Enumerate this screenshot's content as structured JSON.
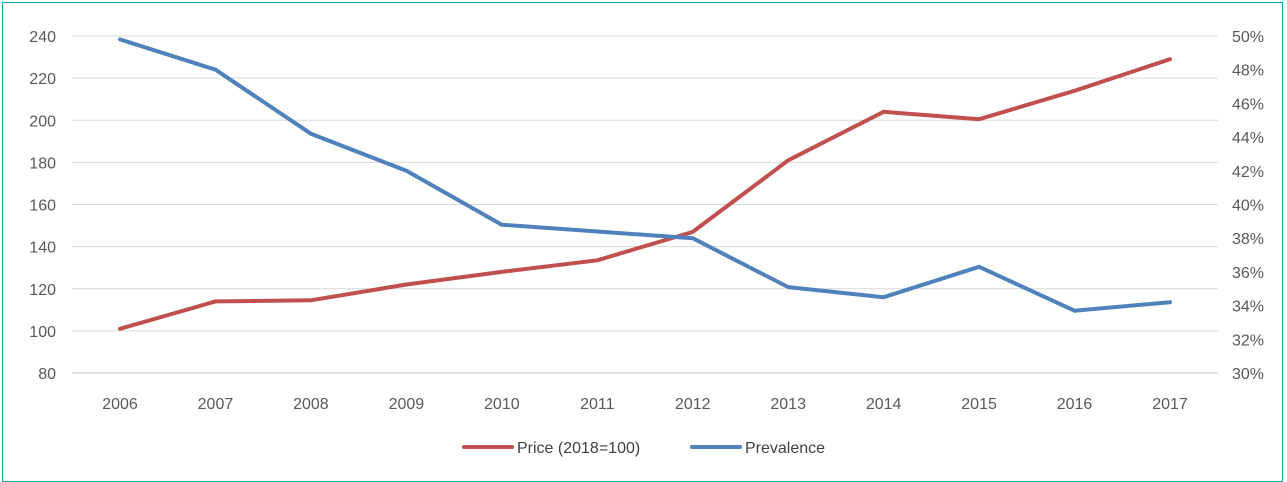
{
  "chart_data": {
    "type": "line",
    "title": "",
    "x": [
      "2006",
      "2007",
      "2008",
      "2009",
      "2010",
      "2011",
      "2012",
      "2013",
      "2014",
      "2015",
      "2016",
      "2017"
    ],
    "y_left": {
      "min": 80,
      "max": 240,
      "step": 20,
      "tick_labels": [
        "80",
        "100",
        "120",
        "140",
        "160",
        "180",
        "200",
        "220",
        "240"
      ]
    },
    "y_right": {
      "min": 30,
      "max": 50,
      "step": 2,
      "unit": "%",
      "tick_labels": [
        "30%",
        "32%",
        "34%",
        "36%",
        "38%",
        "40%",
        "42%",
        "44%",
        "46%",
        "48%",
        "50%"
      ]
    },
    "grid": true,
    "legend_position": "bottom",
    "series": [
      {
        "name": "Price (2018=100)",
        "axis": "left",
        "color": "#c0504d",
        "values": [
          101,
          114,
          114.5,
          122,
          128,
          133.5,
          147,
          181,
          204,
          200.5,
          214,
          229
        ]
      },
      {
        "name": "Prevalence",
        "axis": "right",
        "color": "#4f81bd",
        "values": [
          49.8,
          48.0,
          44.2,
          42.0,
          38.8,
          38.4,
          38.0,
          35.1,
          34.5,
          36.3,
          33.7,
          34.2
        ]
      }
    ]
  }
}
